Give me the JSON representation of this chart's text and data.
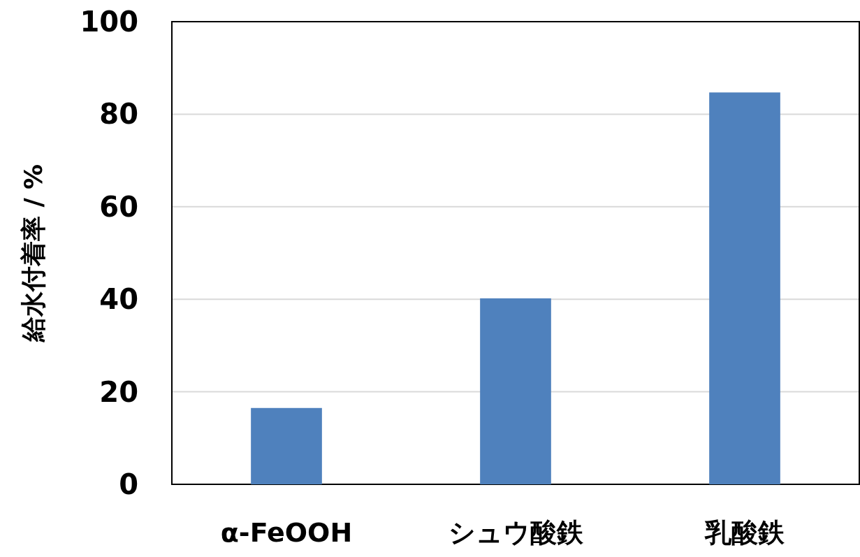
{
  "chart_data": {
    "type": "bar",
    "ylabel": "給水付着率 / %",
    "categories": [
      "α-FeOOH",
      "シュウ酸鉄",
      "乳酸鉄"
    ],
    "values": [
      16.5,
      40.2,
      84.7
    ],
    "color": "#4f81bd",
    "ylim": [
      0,
      100
    ],
    "yticks": [
      0,
      20,
      40,
      60,
      80,
      100
    ],
    "grid": "y"
  }
}
